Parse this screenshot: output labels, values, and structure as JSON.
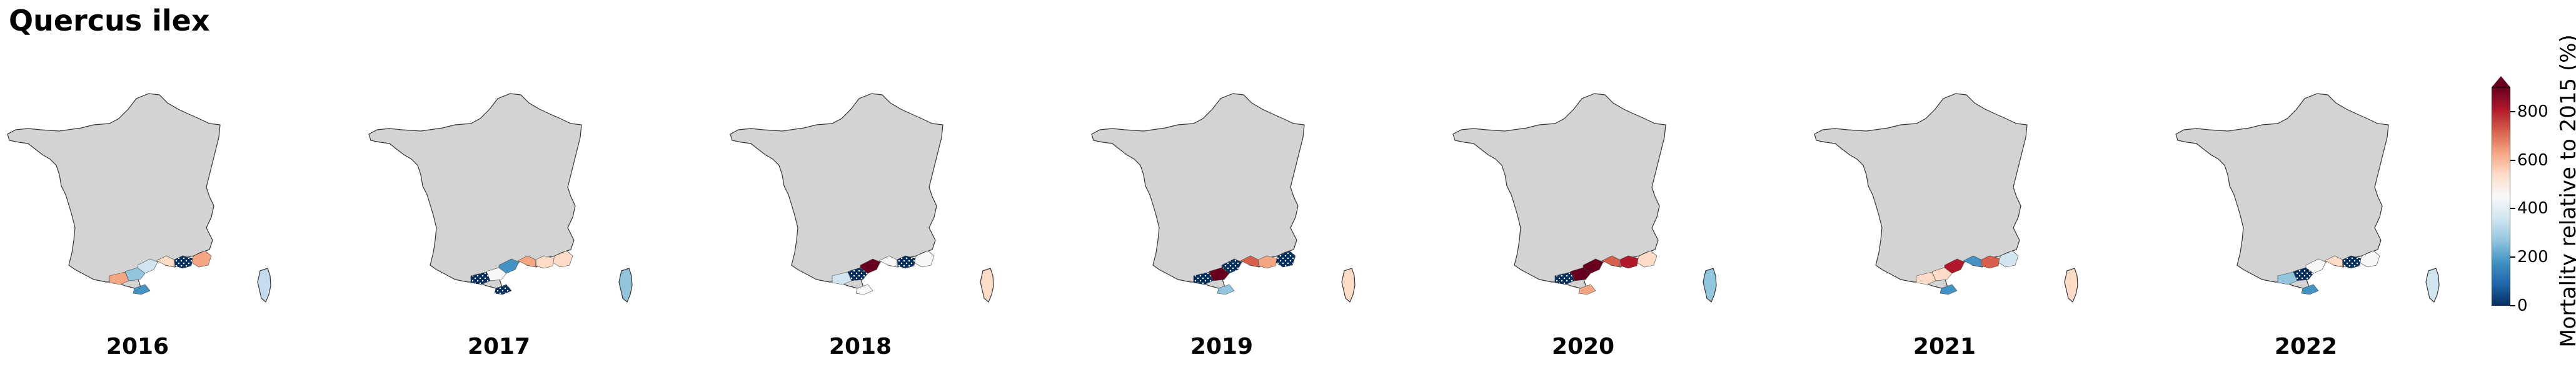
{
  "title": "Quercus ilex",
  "colorbar": {
    "label": "Mortality relative to 2015 (%)",
    "ticks": [
      "800",
      "600",
      "400",
      "200",
      "0"
    ],
    "tick_values": [
      800,
      600,
      400,
      200,
      0
    ],
    "min": 0,
    "max": 900,
    "colors": [
      "#053061",
      "#2166ac",
      "#4393c3",
      "#92c5de",
      "#d1e5f0",
      "#f7f7f7",
      "#fddbc7",
      "#f4a582",
      "#d6604d",
      "#b2182b",
      "#67001f"
    ]
  },
  "panels": [
    {
      "year": "2016",
      "corsica": "#c6dbef",
      "regions": [
        {
          "n": "r1",
          "c": "#fddbc7"
        },
        {
          "n": "r2",
          "c": "#f4a582"
        },
        {
          "n": "r3",
          "c": "#d1e5f0"
        },
        {
          "n": "r4",
          "c": "#92c5de"
        },
        {
          "n": "r5",
          "c": "#053061",
          "hatch": true
        },
        {
          "n": "r6",
          "c": "#f4a582"
        },
        {
          "n": "r7",
          "c": "#4393c3"
        }
      ]
    },
    {
      "year": "2017",
      "corsica": "#92c5de",
      "regions": [
        {
          "n": "r1",
          "c": "#f4a582"
        },
        {
          "n": "r2",
          "c": "#fddbc7"
        },
        {
          "n": "r3",
          "c": "#4393c3"
        },
        {
          "n": "r4",
          "c": "#f7f7f7"
        },
        {
          "n": "r5",
          "c": "#fddbc7"
        },
        {
          "n": "r6",
          "c": "#053061",
          "hatch": true
        },
        {
          "n": "r7",
          "c": "#053061",
          "hatch": true
        }
      ]
    },
    {
      "year": "2018",
      "corsica": "#fddbc7",
      "regions": [
        {
          "n": "r1",
          "c": "#f7f7f7"
        },
        {
          "n": "r2",
          "c": "#f7f7f7"
        },
        {
          "n": "r3",
          "c": "#67001f"
        },
        {
          "n": "r4",
          "c": "#053061",
          "hatch": true
        },
        {
          "n": "r5",
          "c": "#053061",
          "hatch": true
        },
        {
          "n": "r6",
          "c": "#d1e5f0"
        },
        {
          "n": "r7",
          "c": "#f7f7f7"
        }
      ]
    },
    {
      "year": "2019",
      "corsica": "#fddbc7",
      "regions": [
        {
          "n": "r1",
          "c": "#d6604d"
        },
        {
          "n": "r2",
          "c": "#053061",
          "hatch": true
        },
        {
          "n": "r3",
          "c": "#053061",
          "hatch": true
        },
        {
          "n": "r4",
          "c": "#67001f"
        },
        {
          "n": "r5",
          "c": "#f4a582"
        },
        {
          "n": "r6",
          "c": "#053061",
          "hatch": true
        },
        {
          "n": "r7",
          "c": "#92c5de"
        }
      ]
    },
    {
      "year": "2020",
      "corsica": "#92c5de",
      "regions": [
        {
          "n": "r1",
          "c": "#d6604d"
        },
        {
          "n": "r2",
          "c": "#fddbc7"
        },
        {
          "n": "r3",
          "c": "#67001f"
        },
        {
          "n": "r4",
          "c": "#67001f"
        },
        {
          "n": "r5",
          "c": "#b2182b"
        },
        {
          "n": "r6",
          "c": "#053061",
          "hatch": true
        },
        {
          "n": "r7",
          "c": "#f4a582"
        }
      ]
    },
    {
      "year": "2021",
      "corsica": "#fddbc7",
      "regions": [
        {
          "n": "r1",
          "c": "#4393c3"
        },
        {
          "n": "r2",
          "c": "#d1e5f0"
        },
        {
          "n": "r3",
          "c": "#b2182b"
        },
        {
          "n": "r4",
          "c": "#fddbc7"
        },
        {
          "n": "r5",
          "c": "#d6604d"
        },
        {
          "n": "r6",
          "c": "#fddbc7"
        },
        {
          "n": "r7",
          "c": "#4393c3"
        }
      ]
    },
    {
      "year": "2022",
      "corsica": "#d1e5f0",
      "regions": [
        {
          "n": "r1",
          "c": "#fddbc7"
        },
        {
          "n": "r2",
          "c": "#f7f7f7"
        },
        {
          "n": "r3",
          "c": "#f7f7f7"
        },
        {
          "n": "r4",
          "c": "#053061",
          "hatch": true
        },
        {
          "n": "r5",
          "c": "#053061",
          "hatch": true
        },
        {
          "n": "r6",
          "c": "#92c5de"
        },
        {
          "n": "r7",
          "c": "#4393c3"
        }
      ]
    }
  ]
}
